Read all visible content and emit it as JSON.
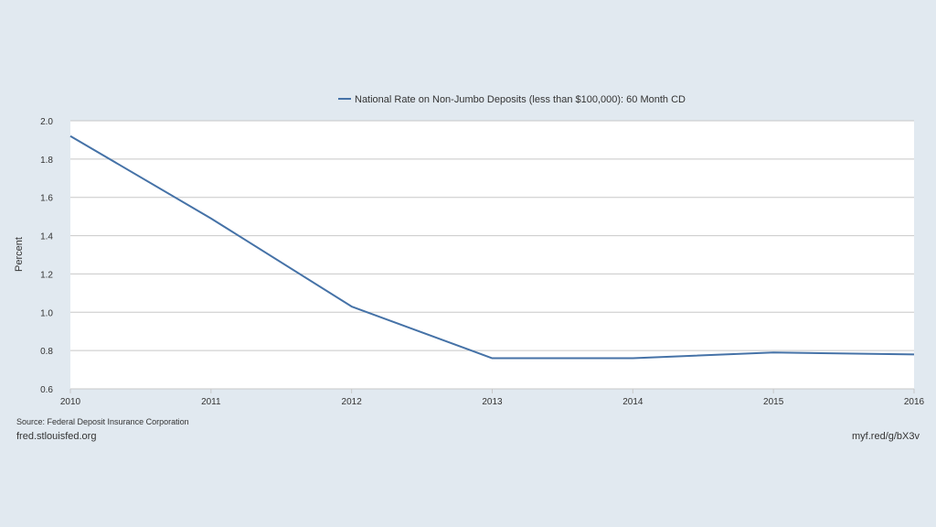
{
  "chart_data": {
    "type": "line",
    "title": "",
    "xlabel": "",
    "ylabel": "Percent",
    "x": [
      2010,
      2011,
      2012,
      2013,
      2014,
      2015,
      2016
    ],
    "series": [
      {
        "name": "National Rate on Non-Jumbo Deposits (less than $100,000): 60 Month CD",
        "values": [
          1.92,
          1.49,
          1.03,
          0.76,
          0.76,
          0.79,
          0.78
        ],
        "color": "#4572a7"
      }
    ],
    "xlim": [
      2010,
      2016
    ],
    "ylim": [
      0.6,
      2.0
    ],
    "x_ticks": [
      "2010",
      "2011",
      "2012",
      "2013",
      "2014",
      "2015",
      "2016"
    ],
    "y_ticks": [
      "0.6",
      "0.8",
      "1.0",
      "1.2",
      "1.4",
      "1.6",
      "1.8",
      "2.0"
    ],
    "grid": true,
    "legend_position": "top-center"
  },
  "footer": {
    "source": "Source: Federal Deposit Insurance Corporation",
    "site": "fred.stlouisfed.org",
    "short_url": "myf.red/g/bX3v"
  },
  "colors": {
    "background": "#e1e9f0",
    "plot_background": "#ffffff",
    "gridline": "#c8c8c8",
    "series": "#4572a7"
  }
}
